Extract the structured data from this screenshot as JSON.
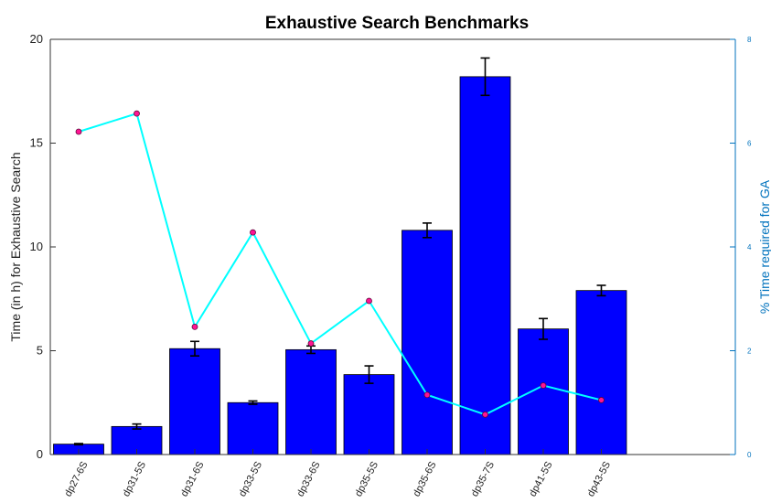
{
  "chart_data": {
    "type": "bar",
    "title": "Exhaustive Search Benchmarks",
    "categories": [
      "dp27-6S",
      "dp31-5S",
      "dp31-6S",
      "dp33-5S",
      "dp33-6S",
      "dp35-5S",
      "dp35-6S",
      "dp35-7S",
      "dp41-5S",
      "dp43-5S"
    ],
    "left_axis": {
      "label": "Time (in h) for Exhaustive Search",
      "ylim": [
        0,
        20
      ],
      "ticks": [
        0,
        5,
        10,
        15,
        20
      ]
    },
    "right_axis": {
      "label": "% Time required for GA",
      "ylim": [
        0,
        8
      ],
      "ticks": [
        0,
        2,
        4,
        6,
        8
      ],
      "color": "#0072bd"
    },
    "series": [
      {
        "axis": "left",
        "kind": "bar",
        "color": "#0000ff",
        "values": [
          0.5,
          1.35,
          5.1,
          2.5,
          5.05,
          3.85,
          10.8,
          18.2,
          6.05,
          7.9
        ],
        "error": [
          0.03,
          0.12,
          0.35,
          0.08,
          0.18,
          0.42,
          0.35,
          0.9,
          0.5,
          0.25
        ]
      },
      {
        "axis": "right",
        "kind": "line",
        "color": "#00ffff",
        "marker_color": "#ff1493",
        "values": [
          6.22,
          6.57,
          2.46,
          4.28,
          2.14,
          2.96,
          1.15,
          0.77,
          1.33,
          1.05
        ]
      }
    ],
    "grid": false,
    "legend": "none"
  }
}
